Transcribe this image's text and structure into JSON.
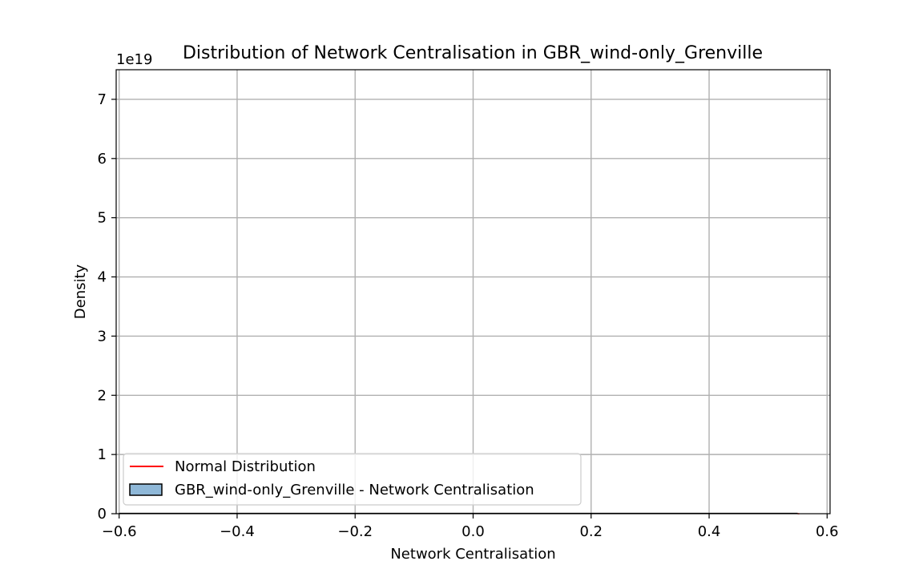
{
  "chart_data": {
    "type": "histogram",
    "title": "Distribution of Network Centralisation in GBR_wind-only_Grenville",
    "xlabel": "Network Centralisation",
    "ylabel": "Density",
    "xlim": [
      -0.605,
      0.605
    ],
    "ylim": [
      0,
      7.5
    ],
    "y_offset_label": "1e19",
    "x_ticks": [
      -0.6,
      -0.4,
      -0.2,
      0.0,
      0.2,
      0.4,
      0.6
    ],
    "x_tick_labels": [
      "−0.6",
      "−0.4",
      "−0.2",
      "0.0",
      "0.2",
      "0.4",
      "0.6"
    ],
    "y_ticks": [
      0,
      1,
      2,
      3,
      4,
      5,
      6,
      7
    ],
    "y_tick_labels": [
      "0",
      "1",
      "2",
      "3",
      "4",
      "5",
      "6",
      "7"
    ],
    "grid": true,
    "legend_placement": "lower-left",
    "series": [
      {
        "name": "Normal Distribution",
        "kind": "line",
        "color": "#ff0000",
        "x": [
          0.55
        ],
        "y": [
          0
        ]
      },
      {
        "name": "GBR_wind-only_Grenville - Network Centralisation",
        "kind": "histogram",
        "color": "#8fb8d8",
        "edgecolor": "#000000",
        "x": [
          -0.6,
          0.55
        ],
        "y": [
          0,
          0
        ]
      }
    ],
    "legend": [
      {
        "label": "Normal Distribution",
        "kind": "line",
        "color": "#ff0000"
      },
      {
        "label": "GBR_wind-only_Grenville - Network Centralisation",
        "kind": "patch",
        "color": "#8fb8d8",
        "edgecolor": "#000000"
      }
    ]
  }
}
